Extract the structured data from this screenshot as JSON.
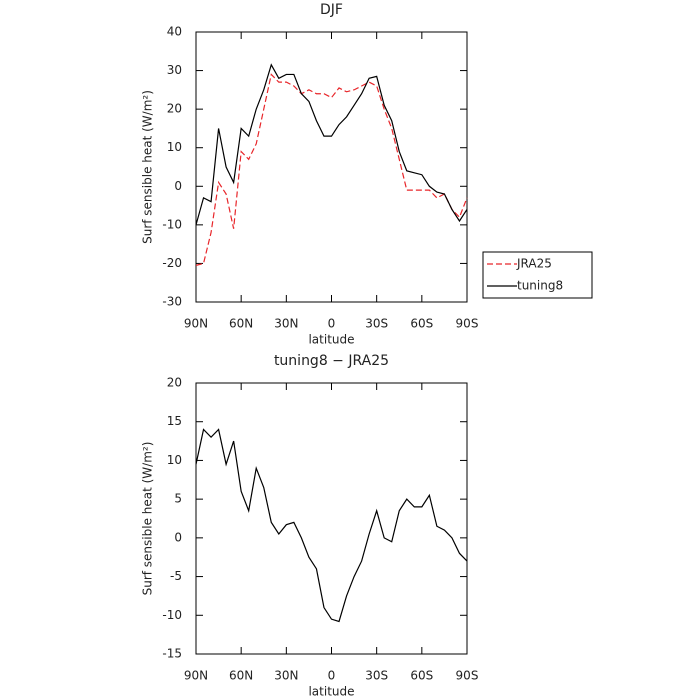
{
  "chart_data": [
    {
      "type": "line",
      "title": "DJF",
      "x_label": "latitude",
      "y_label": "Surf sensible heat (W/m²)",
      "x": [
        90,
        85,
        80,
        75,
        70,
        65,
        60,
        55,
        50,
        45,
        40,
        35,
        30,
        25,
        20,
        15,
        10,
        5,
        0,
        -5,
        -10,
        -15,
        -20,
        -25,
        -30,
        -35,
        -40,
        -45,
        -50,
        -55,
        -60,
        -65,
        -70,
        -75,
        -80,
        -85,
        -90
      ],
      "series": [
        {
          "name": "JRA25",
          "color": "#e8262a",
          "dash": true,
          "values": [
            -20.5,
            -20,
            -12,
            1,
            -2,
            -11,
            9,
            7,
            11,
            20,
            29,
            27,
            27,
            26,
            24,
            25,
            24,
            24,
            23,
            25.5,
            24.5,
            25,
            26,
            27,
            26,
            20,
            15,
            7,
            -1,
            -1,
            -1,
            -1,
            -3,
            -2,
            -6,
            -8,
            -3
          ]
        },
        {
          "name": "tuning8",
          "color": "#000000",
          "dash": false,
          "values": [
            -10,
            -3,
            -4,
            15,
            5,
            1,
            15,
            13,
            20,
            25,
            31.5,
            28,
            29,
            29,
            24,
            22,
            17,
            13,
            13,
            16,
            18,
            21,
            24,
            28,
            28.5,
            21,
            17,
            9,
            4,
            3.5,
            3,
            0,
            -1.5,
            -2,
            -6,
            -9,
            -6
          ]
        }
      ],
      "xlim": [
        90,
        -90
      ],
      "xticks": [
        {
          "value": 90,
          "label": "90N"
        },
        {
          "value": 60,
          "label": "60N"
        },
        {
          "value": 30,
          "label": "30N"
        },
        0,
        {
          "value": -30,
          "label": "30S"
        },
        {
          "value": -60,
          "label": "60S"
        },
        {
          "value": -90,
          "label": "90S"
        }
      ],
      "ylim": [
        -30,
        40
      ],
      "yticks": [
        -30,
        -20,
        -10,
        0,
        10,
        20,
        30,
        40
      ],
      "legend": "right"
    },
    {
      "type": "line",
      "title": "tuning8 − JRA25",
      "x_label": "latitude",
      "y_label": "Surf sensible heat (W/m²)",
      "x": [
        90,
        85,
        80,
        75,
        70,
        65,
        60,
        55,
        50,
        45,
        40,
        35,
        30,
        25,
        20,
        15,
        10,
        5,
        0,
        -5,
        -10,
        -15,
        -20,
        -25,
        -30,
        -35,
        -40,
        -45,
        -50,
        -55,
        -60,
        -65,
        -70,
        -75,
        -80,
        -85,
        -90
      ],
      "series": [
        {
          "color": "#000000",
          "dash": false,
          "values": [
            9.5,
            14,
            13,
            14,
            9.5,
            12.5,
            6,
            3.5,
            9,
            6.5,
            2,
            0.5,
            1.7,
            2,
            0,
            -2.5,
            -4,
            -9,
            -10.5,
            -10.8,
            -7.5,
            -5,
            -3,
            0.5,
            3.5,
            0,
            -0.5,
            3.5,
            5,
            4,
            4,
            5.5,
            1.5,
            1,
            0,
            -2,
            -3
          ]
        }
      ],
      "xlim": [
        90,
        -90
      ],
      "xticks": [
        {
          "value": 90,
          "label": "90N"
        },
        {
          "value": 60,
          "label": "60N"
        },
        {
          "value": 30,
          "label": "30N"
        },
        0,
        {
          "value": -30,
          "label": "30S"
        },
        {
          "value": -60,
          "label": "60S"
        },
        {
          "value": -90,
          "label": "90S"
        }
      ],
      "ylim": [
        -15,
        20
      ],
      "yticks": [
        -15,
        -10,
        -5,
        0,
        5,
        10,
        15,
        20
      ]
    }
  ]
}
